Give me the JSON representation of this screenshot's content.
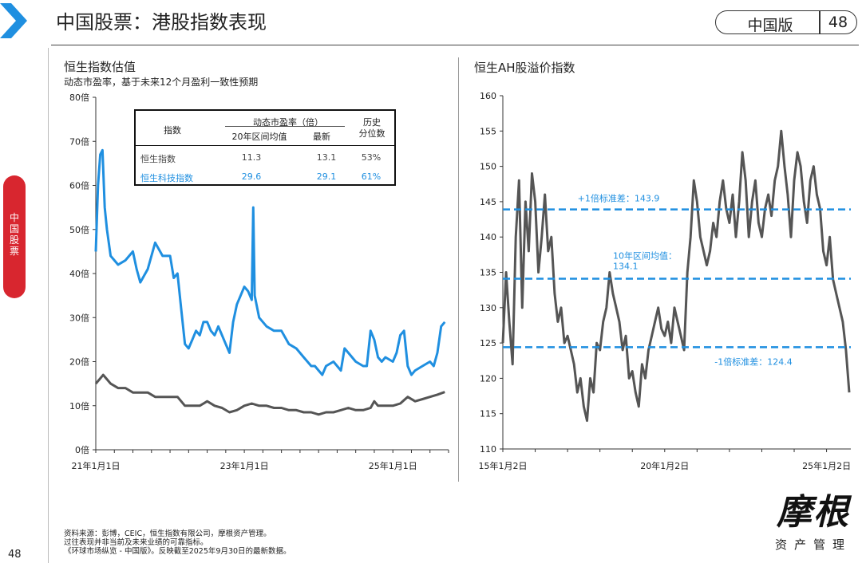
{
  "header": {
    "title": "中国股票：港股指数表现",
    "edition": "中国版",
    "page_number": "48"
  },
  "side_tab": {
    "label": "中国股票"
  },
  "footer": {
    "page_number": "48",
    "notes": [
      "资料来源：彭博，CEIC，恒生指数有限公司，摩根资产管理。",
      "过往表现并非当前及未来业绩的可靠指标。",
      "《环球市场纵览 - 中国版》。反映截至2025年9月30日的最新数据。"
    ]
  },
  "logo": {
    "name": "摩根",
    "tagline": "资产管理"
  },
  "colors": {
    "blue": "#1f8fe0",
    "grey": "#555555",
    "dash": "#1f8fe0",
    "red": "#d8262f"
  },
  "left": {
    "title": "恒生指数估值",
    "subtitle": "动态市盈率，基于未来12个月盈利一致性预期"
  },
  "right": {
    "title": "恒生AH股溢价指数"
  },
  "table": {
    "col_index": "指数",
    "col_group": "动态市盈率（倍）",
    "col_avg": "20年区间均值",
    "col_latest": "最新",
    "col_pct_line1": "历史",
    "col_pct_line2": "分位数",
    "rows": [
      {
        "name": "恒生指数",
        "avg": "11.3",
        "latest": "13.1",
        "pct": "53%"
      },
      {
        "name": "恒生科技指数",
        "avg": "29.6",
        "latest": "29.1",
        "pct": "61%"
      }
    ]
  },
  "chart_data": [
    {
      "type": "line",
      "title": "恒生指数估值",
      "subtitle": "动态市盈率，基于未来12个月盈利一致性预期",
      "ylim": [
        0,
        80
      ],
      "yticks": [
        "0倍",
        "10倍",
        "20倍",
        "30倍",
        "40倍",
        "50倍",
        "60倍",
        "70倍",
        "80倍"
      ],
      "xticks": [
        "21年1月1日",
        "23年1月1日",
        "25年1月1日"
      ],
      "xrange": [
        "2021-01",
        "2025-09"
      ],
      "series": [
        {
          "name": "恒生科技指数",
          "color": "#1f8fe0",
          "points": [
            [
              2021.0,
              45
            ],
            [
              2021.03,
              60
            ],
            [
              2021.06,
              67
            ],
            [
              2021.09,
              68
            ],
            [
              2021.12,
              55
            ],
            [
              2021.15,
              50
            ],
            [
              2021.2,
              44
            ],
            [
              2021.3,
              42
            ],
            [
              2021.4,
              43
            ],
            [
              2021.5,
              45
            ],
            [
              2021.55,
              41
            ],
            [
              2021.6,
              38
            ],
            [
              2021.7,
              41
            ],
            [
              2021.8,
              47
            ],
            [
              2021.9,
              44
            ],
            [
              2022.0,
              44
            ],
            [
              2022.05,
              39
            ],
            [
              2022.1,
              40
            ],
            [
              2022.15,
              32
            ],
            [
              2022.2,
              24
            ],
            [
              2022.25,
              23
            ],
            [
              2022.3,
              25
            ],
            [
              2022.35,
              27
            ],
            [
              2022.4,
              26
            ],
            [
              2022.45,
              29
            ],
            [
              2022.5,
              29
            ],
            [
              2022.55,
              27
            ],
            [
              2022.6,
              26
            ],
            [
              2022.65,
              28
            ],
            [
              2022.7,
              26
            ],
            [
              2022.75,
              24
            ],
            [
              2022.8,
              22
            ],
            [
              2022.85,
              29
            ],
            [
              2022.9,
              33
            ],
            [
              2022.95,
              35
            ],
            [
              2023.0,
              37
            ],
            [
              2023.05,
              36
            ],
            [
              2023.1,
              34
            ],
            [
              2023.12,
              55
            ],
            [
              2023.14,
              35
            ],
            [
              2023.2,
              30
            ],
            [
              2023.3,
              28
            ],
            [
              2023.4,
              27
            ],
            [
              2023.5,
              27
            ],
            [
              2023.6,
              24
            ],
            [
              2023.7,
              23
            ],
            [
              2023.8,
              21
            ],
            [
              2023.9,
              19
            ],
            [
              2023.95,
              19
            ],
            [
              2024.0,
              18
            ],
            [
              2024.05,
              17
            ],
            [
              2024.1,
              19
            ],
            [
              2024.2,
              20
            ],
            [
              2024.3,
              18
            ],
            [
              2024.35,
              23
            ],
            [
              2024.4,
              22
            ],
            [
              2024.5,
              20
            ],
            [
              2024.6,
              19
            ],
            [
              2024.65,
              19
            ],
            [
              2024.7,
              27
            ],
            [
              2024.75,
              25
            ],
            [
              2024.8,
              21
            ],
            [
              2024.85,
              20
            ],
            [
              2024.9,
              21
            ],
            [
              2025.0,
              20
            ],
            [
              2025.05,
              22
            ],
            [
              2025.1,
              26
            ],
            [
              2025.15,
              27
            ],
            [
              2025.2,
              19
            ],
            [
              2025.25,
              17
            ],
            [
              2025.3,
              18
            ],
            [
              2025.4,
              19
            ],
            [
              2025.5,
              20
            ],
            [
              2025.55,
              19
            ],
            [
              2025.6,
              22
            ],
            [
              2025.65,
              28
            ],
            [
              2025.7,
              29
            ]
          ]
        },
        {
          "name": "恒生指数",
          "color": "#555555",
          "points": [
            [
              2021.0,
              15
            ],
            [
              2021.05,
              16
            ],
            [
              2021.1,
              17
            ],
            [
              2021.15,
              16
            ],
            [
              2021.2,
              15
            ],
            [
              2021.3,
              14
            ],
            [
              2021.4,
              14
            ],
            [
              2021.5,
              13
            ],
            [
              2021.6,
              13
            ],
            [
              2021.7,
              13
            ],
            [
              2021.8,
              12
            ],
            [
              2021.9,
              12
            ],
            [
              2022.0,
              12
            ],
            [
              2022.1,
              12
            ],
            [
              2022.15,
              11
            ],
            [
              2022.2,
              10
            ],
            [
              2022.3,
              10
            ],
            [
              2022.4,
              10
            ],
            [
              2022.5,
              11
            ],
            [
              2022.6,
              10
            ],
            [
              2022.7,
              9.5
            ],
            [
              2022.8,
              8.5
            ],
            [
              2022.9,
              9
            ],
            [
              2023.0,
              10
            ],
            [
              2023.1,
              10.5
            ],
            [
              2023.2,
              10
            ],
            [
              2023.3,
              10
            ],
            [
              2023.4,
              9.5
            ],
            [
              2023.5,
              9.5
            ],
            [
              2023.6,
              9
            ],
            [
              2023.7,
              9
            ],
            [
              2023.8,
              8.5
            ],
            [
              2023.9,
              8.5
            ],
            [
              2024.0,
              8
            ],
            [
              2024.1,
              8.5
            ],
            [
              2024.2,
              8.5
            ],
            [
              2024.3,
              9
            ],
            [
              2024.4,
              9.5
            ],
            [
              2024.5,
              9
            ],
            [
              2024.6,
              9
            ],
            [
              2024.7,
              9.5
            ],
            [
              2024.75,
              11
            ],
            [
              2024.8,
              10
            ],
            [
              2024.9,
              10
            ],
            [
              2025.0,
              10
            ],
            [
              2025.1,
              10.5
            ],
            [
              2025.2,
              12
            ],
            [
              2025.3,
              11
            ],
            [
              2025.4,
              11.5
            ],
            [
              2025.5,
              12
            ],
            [
              2025.6,
              12.5
            ],
            [
              2025.7,
              13.1
            ]
          ]
        }
      ]
    },
    {
      "type": "line",
      "title": "恒生AH股溢价指数",
      "ylim": [
        110,
        160
      ],
      "yticks": [
        "110",
        "115",
        "120",
        "125",
        "130",
        "135",
        "140",
        "145",
        "150",
        "155",
        "160"
      ],
      "xticks": [
        "15年1月2日",
        "20年1月2日",
        "25年1月2日"
      ],
      "xrange": [
        "2015-01",
        "2025-09"
      ],
      "reference_lines": [
        {
          "label": "+1倍标准差：143.9",
          "value": 143.9
        },
        {
          "label": "10年区间均值：134.1",
          "value": 134.1
        },
        {
          "label": "-1倍标准差：124.4",
          "value": 124.4
        }
      ],
      "series": [
        {
          "name": "恒生AH股溢价指数",
          "color": "#555555",
          "points": [
            [
              2015.0,
              125
            ],
            [
              2015.1,
              135
            ],
            [
              2015.2,
              128
            ],
            [
              2015.3,
              122
            ],
            [
              2015.4,
              140
            ],
            [
              2015.5,
              148
            ],
            [
              2015.6,
              130
            ],
            [
              2015.7,
              145
            ],
            [
              2015.8,
              138
            ],
            [
              2015.9,
              149
            ],
            [
              2016.0,
              145
            ],
            [
              2016.1,
              135
            ],
            [
              2016.2,
              140
            ],
            [
              2016.3,
              146
            ],
            [
              2016.4,
              138
            ],
            [
              2016.5,
              140
            ],
            [
              2016.6,
              132
            ],
            [
              2016.7,
              128
            ],
            [
              2016.8,
              130
            ],
            [
              2016.9,
              125
            ],
            [
              2017.0,
              126
            ],
            [
              2017.1,
              124
            ],
            [
              2017.2,
              122
            ],
            [
              2017.3,
              118
            ],
            [
              2017.4,
              120
            ],
            [
              2017.5,
              116
            ],
            [
              2017.6,
              114
            ],
            [
              2017.7,
              120
            ],
            [
              2017.8,
              118
            ],
            [
              2017.9,
              125
            ],
            [
              2018.0,
              124
            ],
            [
              2018.1,
              128
            ],
            [
              2018.2,
              130
            ],
            [
              2018.3,
              135
            ],
            [
              2018.4,
              132
            ],
            [
              2018.5,
              130
            ],
            [
              2018.6,
              128
            ],
            [
              2018.7,
              124
            ],
            [
              2018.8,
              126
            ],
            [
              2018.9,
              120
            ],
            [
              2019.0,
              121
            ],
            [
              2019.1,
              118
            ],
            [
              2019.2,
              116
            ],
            [
              2019.3,
              122
            ],
            [
              2019.4,
              120
            ],
            [
              2019.5,
              124
            ],
            [
              2019.6,
              126
            ],
            [
              2019.7,
              128
            ],
            [
              2019.8,
              130
            ],
            [
              2019.9,
              127
            ],
            [
              2020.0,
              126
            ],
            [
              2020.1,
              128
            ],
            [
              2020.2,
              125
            ],
            [
              2020.3,
              130
            ],
            [
              2020.4,
              128
            ],
            [
              2020.5,
              126
            ],
            [
              2020.6,
              124
            ],
            [
              2020.7,
              135
            ],
            [
              2020.8,
              140
            ],
            [
              2020.9,
              148
            ],
            [
              2021.0,
              145
            ],
            [
              2021.1,
              140
            ],
            [
              2021.2,
              138
            ],
            [
              2021.3,
              136
            ],
            [
              2021.4,
              138
            ],
            [
              2021.5,
              142
            ],
            [
              2021.6,
              140
            ],
            [
              2021.7,
              145
            ],
            [
              2021.8,
              148
            ],
            [
              2021.9,
              144
            ],
            [
              2022.0,
              142
            ],
            [
              2022.1,
              146
            ],
            [
              2022.2,
              140
            ],
            [
              2022.3,
              145
            ],
            [
              2022.4,
              152
            ],
            [
              2022.5,
              148
            ],
            [
              2022.6,
              140
            ],
            [
              2022.7,
              145
            ],
            [
              2022.8,
              148
            ],
            [
              2022.9,
              142
            ],
            [
              2023.0,
              140
            ],
            [
              2023.1,
              144
            ],
            [
              2023.2,
              146
            ],
            [
              2023.3,
              143
            ],
            [
              2023.4,
              148
            ],
            [
              2023.5,
              150
            ],
            [
              2023.6,
              155
            ],
            [
              2023.7,
              150
            ],
            [
              2023.8,
              146
            ],
            [
              2023.9,
              140
            ],
            [
              2024.0,
              148
            ],
            [
              2024.1,
              152
            ],
            [
              2024.2,
              150
            ],
            [
              2024.3,
              145
            ],
            [
              2024.4,
              142
            ],
            [
              2024.5,
              148
            ],
            [
              2024.6,
              150
            ],
            [
              2024.7,
              146
            ],
            [
              2024.8,
              144
            ],
            [
              2024.9,
              138
            ],
            [
              2025.0,
              136
            ],
            [
              2025.1,
              140
            ],
            [
              2025.2,
              134
            ],
            [
              2025.3,
              132
            ],
            [
              2025.4,
              130
            ],
            [
              2025.5,
              128
            ],
            [
              2025.6,
              124
            ],
            [
              2025.7,
              118
            ]
          ]
        }
      ]
    }
  ]
}
